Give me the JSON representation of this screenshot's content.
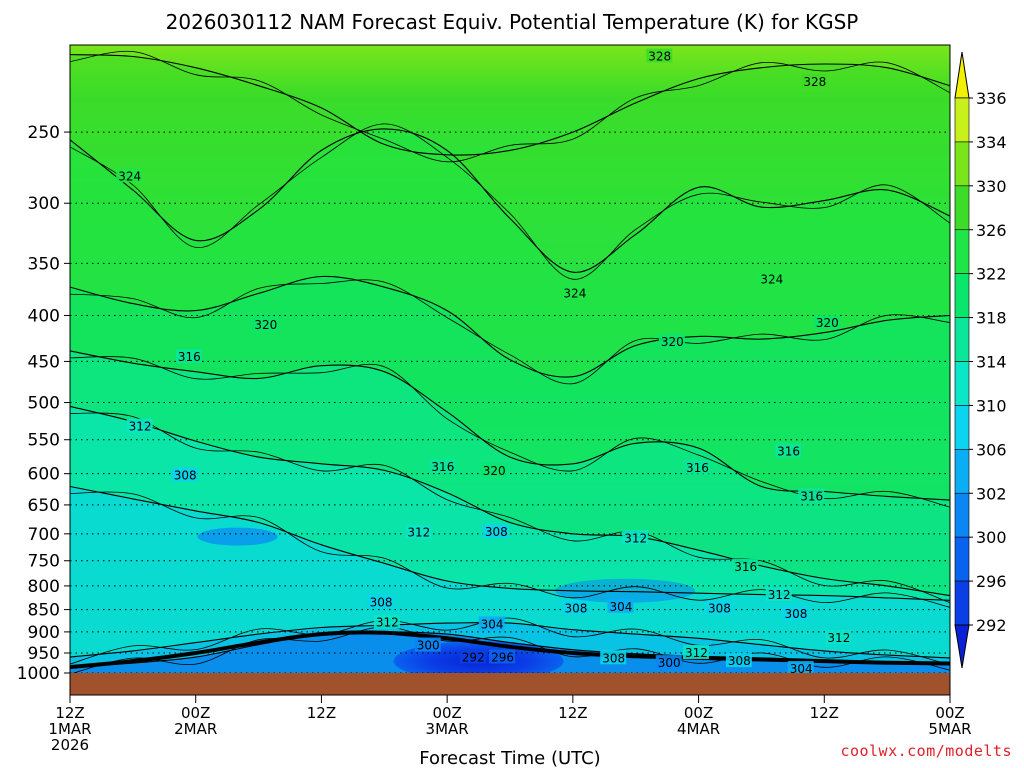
{
  "chart_data": {
    "type": "heatmap",
    "title": "2026030112 NAM Forecast Equiv. Potential Temperature (K) for KGSP",
    "xlabel": "Forecast Time (UTC)",
    "ylabel": "",
    "credit": "coolwx.com/modelts",
    "y_axis": {
      "scale": "log-pressure",
      "range": [
        1000,
        200
      ],
      "ticks": [
        "250",
        "300",
        "350",
        "400",
        "450",
        "500",
        "550",
        "600",
        "650",
        "700",
        "750",
        "800",
        "850",
        "900",
        "950",
        "1000"
      ],
      "tick_values": [
        250,
        300,
        350,
        400,
        450,
        500,
        550,
        600,
        650,
        700,
        750,
        800,
        850,
        900,
        950,
        1000
      ],
      "grid": "dotted"
    },
    "x_axis": {
      "range_hours": [
        0,
        84
      ],
      "ticks": [
        {
          "hour": 0,
          "line1": "12Z",
          "line2": "1MAR",
          "line3": "2026"
        },
        {
          "hour": 12,
          "line1": "00Z",
          "line2": "2MAR",
          "line3": ""
        },
        {
          "hour": 24,
          "line1": "12Z",
          "line2": "",
          "line3": ""
        },
        {
          "hour": 36,
          "line1": "00Z",
          "line2": "3MAR",
          "line3": ""
        },
        {
          "hour": 48,
          "line1": "12Z",
          "line2": "",
          "line3": ""
        },
        {
          "hour": 60,
          "line1": "00Z",
          "line2": "4MAR",
          "line3": ""
        },
        {
          "hour": 72,
          "line1": "12Z",
          "line2": "",
          "line3": ""
        },
        {
          "hour": 84,
          "line1": "00Z",
          "line2": "5MAR",
          "line3": ""
        }
      ]
    },
    "colorbar": {
      "levels": [
        292,
        296,
        300,
        302,
        306,
        310,
        314,
        318,
        322,
        326,
        330,
        334,
        336
      ],
      "labels": [
        "292",
        "296",
        "300",
        "302",
        "306",
        "310",
        "314",
        "318",
        "322",
        "326",
        "330",
        "334",
        "336"
      ],
      "colors": [
        "#0a22d6",
        "#0a3fe6",
        "#0a62f0",
        "#0a86f5",
        "#0aaef5",
        "#0ad4f0",
        "#0ae6c8",
        "#0ae69a",
        "#0ae66c",
        "#1ee646",
        "#3cdc28",
        "#7ae61a",
        "#c8f01a",
        "#f0f000"
      ]
    },
    "ground_color": "#a0522d",
    "isotherms": [
      {
        "theta": 328,
        "pressures": [
          205,
          206,
          212,
          222,
          235,
          258,
          265,
          262,
          250,
          232,
          218,
          212,
          210,
          212,
          222
        ]
      },
      {
        "theta": 324,
        "pressures": [
          255,
          290,
          330,
          305,
          262,
          248,
          262,
          312,
          358,
          325,
          288,
          303,
          298,
          290,
          310
        ]
      },
      {
        "theta": 320,
        "pressures": [
          372,
          388,
          395,
          378,
          362,
          372,
          395,
          448,
          468,
          432,
          422,
          425,
          418,
          405,
          400
        ]
      },
      {
        "theta": 316,
        "pressures": [
          438,
          452,
          462,
          470,
          455,
          462,
          512,
          575,
          585,
          555,
          562,
          620,
          628,
          636,
          642
        ]
      },
      {
        "theta": 312,
        "pressures": [
          505,
          525,
          552,
          575,
          585,
          595,
          630,
          680,
          700,
          705,
          730,
          760,
          785,
          800,
          820
        ]
      },
      {
        "theta": 308,
        "pressures": [
          620,
          640,
          660,
          680,
          720,
          755,
          790,
          805,
          810,
          812,
          815,
          818,
          820,
          825,
          830
        ]
      },
      {
        "theta": 304,
        "pressures": [
          960,
          945,
          925,
          905,
          890,
          885,
          880,
          880,
          895,
          905,
          915,
          930,
          945,
          955,
          962
        ]
      },
      {
        "theta": 300,
        "pressures": [
          985,
          975,
          960,
          930,
          905,
          900,
          905,
          925,
          942,
          952,
          958,
          962,
          968,
          972,
          975
        ]
      }
    ],
    "contour_labels": [
      {
        "text": "328",
        "hour": 55.2,
        "p": 206
      },
      {
        "text": "328",
        "hour": 70.0,
        "p": 220
      },
      {
        "text": "324",
        "hour": 4.6,
        "p": 280
      },
      {
        "text": "324",
        "hour": 47.1,
        "p": 378
      },
      {
        "text": "324",
        "hour": 65.9,
        "p": 365
      },
      {
        "text": "320",
        "hour": 17.6,
        "p": 410
      },
      {
        "text": "320",
        "hour": 56.4,
        "p": 428
      },
      {
        "text": "320",
        "hour": 71.2,
        "p": 408
      },
      {
        "text": "316",
        "hour": 10.3,
        "p": 445
      },
      {
        "text": "312",
        "hour": 5.6,
        "p": 532
      },
      {
        "text": "308",
        "hour": 9.9,
        "p": 603
      },
      {
        "text": "316",
        "hour": 34.5,
        "p": 590
      },
      {
        "text": "320",
        "hour": 39.4,
        "p": 596
      },
      {
        "text": "316",
        "hour": 58.8,
        "p": 591
      },
      {
        "text": "316",
        "hour": 67.5,
        "p": 567
      },
      {
        "text": "316",
        "hour": 69.7,
        "p": 636
      },
      {
        "text": "312",
        "hour": 32.2,
        "p": 698
      },
      {
        "text": "308",
        "hour": 39.6,
        "p": 697
      },
      {
        "text": "312",
        "hour": 52.9,
        "p": 708
      },
      {
        "text": "316",
        "hour": 63.4,
        "p": 762
      },
      {
        "text": "308",
        "hour": 28.6,
        "p": 835
      },
      {
        "text": "312",
        "hour": 29.2,
        "p": 879
      },
      {
        "text": "304",
        "hour": 39.2,
        "p": 883
      },
      {
        "text": "308",
        "hour": 47.2,
        "p": 848
      },
      {
        "text": "304",
        "hour": 51.5,
        "p": 844
      },
      {
        "text": "308",
        "hour": 60.9,
        "p": 848
      },
      {
        "text": "312",
        "hour": 66.6,
        "p": 819
      },
      {
        "text": "308",
        "hour": 68.2,
        "p": 860
      },
      {
        "text": "312",
        "hour": 72.3,
        "p": 914
      },
      {
        "text": "300",
        "hour": 33.1,
        "p": 932
      },
      {
        "text": "292",
        "hour": 37.4,
        "p": 961
      },
      {
        "text": "296",
        "hour": 40.2,
        "p": 961
      },
      {
        "text": "308",
        "hour": 50.8,
        "p": 963
      },
      {
        "text": "300",
        "hour": 56.1,
        "p": 975
      },
      {
        "text": "312",
        "hour": 58.7,
        "p": 950
      },
      {
        "text": "308",
        "hour": 62.8,
        "p": 970
      },
      {
        "text": "304",
        "hour": 68.7,
        "p": 990
      }
    ]
  }
}
